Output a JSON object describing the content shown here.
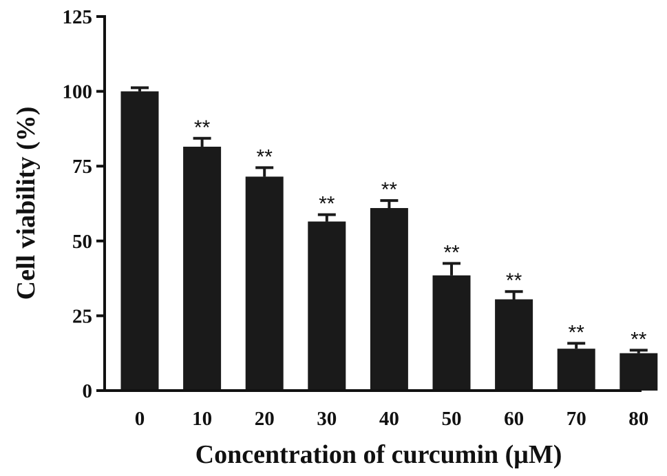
{
  "chart_data": {
    "type": "bar",
    "title": "",
    "xlabel": "Concentration of curcumin (μM)",
    "ylabel": "Cell viability (%)",
    "categories": [
      "0",
      "10",
      "20",
      "30",
      "40",
      "50",
      "60",
      "70",
      "80"
    ],
    "values": [
      100,
      81.5,
      71.5,
      56.5,
      61,
      38.5,
      30.5,
      14,
      12.5
    ],
    "errors": [
      1.2,
      2.8,
      3,
      2.3,
      2.5,
      4,
      2.6,
      1.8,
      1
    ],
    "annotations": [
      "",
      "**",
      "**",
      "**",
      "**",
      "**",
      "**",
      "**",
      "**"
    ],
    "ylim": [
      0,
      125
    ],
    "yticks": [
      "0",
      "25",
      "50",
      "75",
      "100",
      "125"
    ],
    "grid": false,
    "bar_color": "#1a1a1a"
  }
}
